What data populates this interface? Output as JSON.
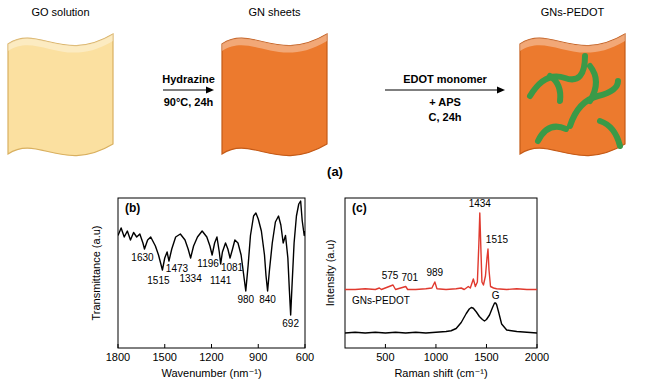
{
  "diagram": {
    "label": "(a)",
    "steps": [
      {
        "label": "GO solution"
      },
      {
        "label": "GN sheets"
      },
      {
        "label": "GNs-PEDOT"
      }
    ],
    "arrows": [
      {
        "above": [
          "Hydrazine"
        ],
        "below": [
          "90°C, 24h"
        ]
      },
      {
        "above": [
          "EDOT monomer"
        ],
        "below": [
          "+ APS",
          "C, 24h"
        ]
      }
    ]
  },
  "chart_data": [
    {
      "type": "line",
      "title": "(b)",
      "x_label": "Wavenumber (nm⁻¹)",
      "y_label": "Transmittance (a.u)",
      "xlim": [
        1800,
        600
      ],
      "xticks": [
        1800,
        1500,
        1200,
        900,
        600
      ],
      "ylim": [
        0,
        100
      ],
      "tick_labels": "x",
      "series": [
        {
          "color": "#000000",
          "x": [
            1800,
            1780,
            1760,
            1740,
            1720,
            1700,
            1680,
            1660,
            1640,
            1630,
            1610,
            1590,
            1560,
            1540,
            1515,
            1500,
            1485,
            1473,
            1455,
            1430,
            1400,
            1370,
            1350,
            1334,
            1315,
            1290,
            1260,
            1230,
            1210,
            1196,
            1180,
            1165,
            1150,
            1141,
            1130,
            1110,
            1095,
            1081,
            1065,
            1050,
            1030,
            1010,
            995,
            980,
            965,
            950,
            930,
            915,
            900,
            880,
            860,
            850,
            840,
            828,
            810,
            790,
            770,
            755,
            740,
            725,
            710,
            700,
            692,
            684,
            670,
            655,
            640,
            628,
            618,
            605,
            600
          ],
          "values": [
            75,
            80,
            74,
            78,
            72,
            77,
            74,
            76,
            70,
            66,
            72,
            74,
            68,
            62,
            52,
            60,
            64,
            58,
            66,
            74,
            76,
            72,
            66,
            60,
            68,
            74,
            78,
            74,
            68,
            62,
            70,
            74,
            64,
            56,
            64,
            70,
            66,
            60,
            66,
            72,
            70,
            62,
            50,
            38,
            55,
            75,
            88,
            90,
            86,
            78,
            62,
            48,
            38,
            52,
            70,
            84,
            88,
            82,
            70,
            75,
            60,
            38,
            22,
            40,
            70,
            88,
            96,
            98,
            85,
            75,
            78
          ],
          "peak_labels": [
            1630,
            1515,
            1473,
            1334,
            1196,
            1141,
            1081,
            980,
            840,
            692
          ]
        }
      ]
    },
    {
      "type": "line",
      "title": "(c)",
      "x_label": "Raman shift (cm⁻¹)",
      "y_label": "Intensity (a.u)",
      "xlim": [
        100,
        2000
      ],
      "xticks": [
        500,
        1000,
        1500,
        2000
      ],
      "ylim": [
        0,
        100
      ],
      "tick_labels": "x",
      "series": [
        {
          "name": "GNs-PEDOT",
          "color": "#e0392e",
          "x": [
            100,
            200,
            300,
            400,
            440,
            460,
            575,
            600,
            701,
            720,
            800,
            900,
            960,
            989,
            1010,
            1100,
            1200,
            1250,
            1280,
            1320,
            1340,
            1370,
            1390,
            1410,
            1425,
            1434,
            1442,
            1455,
            1470,
            1490,
            1505,
            1515,
            1525,
            1540,
            1570,
            1600,
            1700,
            1800,
            1900,
            2000
          ],
          "values": [
            39,
            39,
            39.5,
            39,
            40,
            39,
            42,
            39,
            41,
            39,
            39,
            39.5,
            40,
            44,
            39.5,
            39,
            39.5,
            40,
            39,
            41,
            40,
            46,
            41,
            44,
            70,
            90,
            72,
            44,
            42,
            48,
            60,
            66,
            52,
            41,
            40,
            39.5,
            39,
            39.5,
            39,
            39
          ],
          "peak_labels": [
            575,
            701,
            989,
            1434,
            1515
          ]
        },
        {
          "color": "#000000",
          "x": [
            100,
            200,
            300,
            400,
            500,
            600,
            700,
            800,
            900,
            1000,
            1100,
            1150,
            1200,
            1250,
            1300,
            1330,
            1350,
            1370,
            1400,
            1430,
            1460,
            1480,
            1500,
            1530,
            1560,
            1580,
            1590,
            1600,
            1620,
            1650,
            1700,
            1800,
            1900,
            2000
          ],
          "values": [
            10,
            10.5,
            10,
            10.5,
            10,
            10.5,
            10,
            10.5,
            10,
            10.5,
            11,
            11.5,
            13,
            17,
            23,
            26,
            27,
            26.5,
            24,
            21,
            19,
            18,
            19,
            22,
            27,
            30,
            30,
            29,
            24,
            16,
            12,
            11,
            10.5,
            10
          ],
          "annotations": [
            {
              "text": "G",
              "x": 1590
            }
          ]
        }
      ]
    }
  ]
}
